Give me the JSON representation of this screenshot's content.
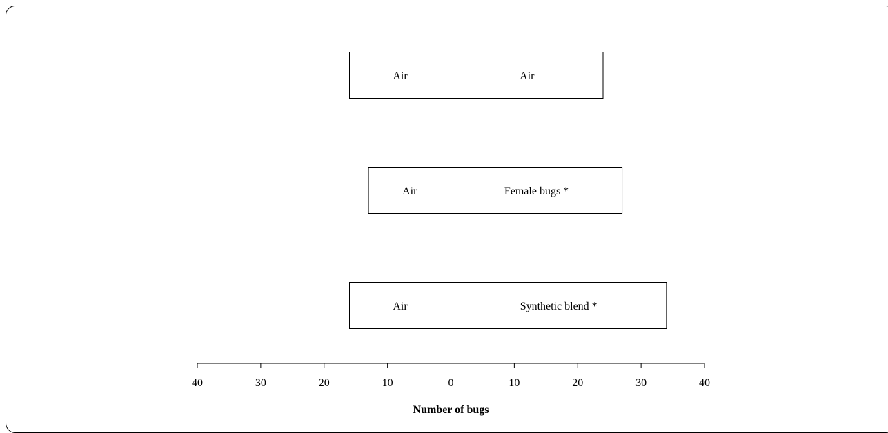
{
  "chart_data": {
    "type": "bar",
    "orientation": "horizontal-diverging",
    "rows": [
      {
        "left": {
          "label": "Air",
          "value": 16
        },
        "right": {
          "label": "Air",
          "value": 24
        }
      },
      {
        "left": {
          "label": "Air",
          "value": 13
        },
        "right": {
          "label": "Female bugs *",
          "value": 27
        }
      },
      {
        "left": {
          "label": "Air",
          "value": 16
        },
        "right": {
          "label": "Synthetic blend *",
          "value": 34
        }
      }
    ],
    "xlim": [
      -40,
      40
    ],
    "xticks": [
      -40,
      -30,
      -20,
      -10,
      0,
      10,
      20,
      30,
      40
    ],
    "xtick_labels": [
      "40",
      "30",
      "20",
      "10",
      "0",
      "10",
      "20",
      "30",
      "40"
    ],
    "xlabel": "Number of bugs",
    "grid": false,
    "bar_fill": "#ffffff",
    "bar_stroke": "#000000"
  }
}
